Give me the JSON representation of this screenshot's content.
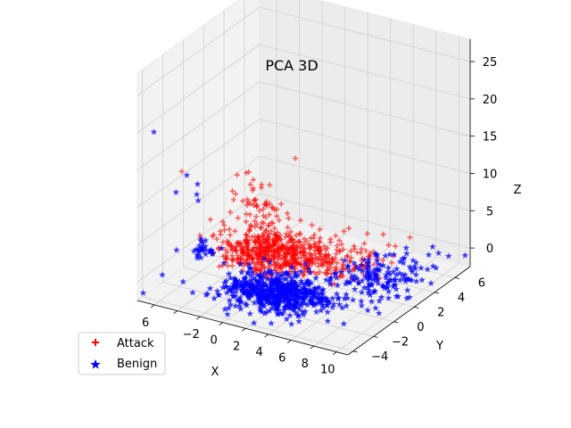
{
  "chart_data": {
    "type": "scatter",
    "projection": "3d",
    "title": "PCA 3D",
    "xlabel": "X",
    "ylabel": "Y",
    "zlabel": "Z",
    "xlim": [
      -7.5,
      11
    ],
    "ylim": [
      -4.5,
      7.5
    ],
    "zlim": [
      -2.5,
      28
    ],
    "x_ticks": [
      -6,
      -4,
      -2,
      0,
      2,
      4,
      6,
      8,
      10
    ],
    "y_ticks": [
      -4,
      -2,
      0,
      2,
      4,
      6
    ],
    "z_ticks": [
      0,
      5,
      10,
      15,
      20,
      25
    ],
    "x_tick_labels_visible": [
      "6",
      "",
      "−2",
      "0",
      "2",
      "4",
      "6",
      "8",
      "10"
    ],
    "y_tick_labels_visible": [
      "−4",
      "−2",
      "0",
      "2",
      "4",
      "6"
    ],
    "z_tick_labels_visible": [
      "0",
      "5",
      "10",
      "15",
      "20",
      "25"
    ],
    "legend_placement": "lower-left",
    "series": [
      {
        "name": "Attack",
        "color": "#ff0000",
        "marker": "plus",
        "clusters": [
          {
            "center": [
              0.5,
              -0.5,
              2
            ],
            "spread": [
              2.0,
              1.2,
              1.6
            ],
            "count": 460
          },
          {
            "center": [
              3.5,
              1.5,
              1.0
            ],
            "spread": [
              2.2,
              1.1,
              0.9
            ],
            "count": 220
          },
          {
            "center": [
              0.0,
              -1.0,
              7
            ],
            "spread": [
              0.8,
              0.6,
              3.0
            ],
            "count": 50
          }
        ],
        "points": [
          [
            -4.5,
            -3.5,
            15
          ],
          [
            -2.0,
            -1.0,
            10.5
          ],
          [
            1.0,
            1.5,
            14
          ],
          [
            6.5,
            4.0,
            3.5
          ],
          [
            7.5,
            5.5,
            2.0
          ]
        ]
      },
      {
        "name": "Benign",
        "color": "#0000ff",
        "marker": "star",
        "clusters": [
          {
            "center": [
              1.5,
              -1.0,
              -1.5
            ],
            "spread": [
              2.2,
              1.2,
              0.25
            ],
            "count": 600
          },
          {
            "center": [
              7.0,
              3.0,
              -1.0
            ],
            "spread": [
              1.8,
              1.5,
              0.25
            ],
            "count": 160
          },
          {
            "center": [
              -3.5,
              -2.5,
              3.5
            ],
            "spread": [
              0.8,
              0.5,
              0.8
            ],
            "count": 30
          }
        ],
        "points": [
          [
            -6.5,
            -4.0,
            20
          ],
          [
            -4.5,
            -3.0,
            14
          ],
          [
            -4.0,
            -2.5,
            12.5
          ],
          [
            -3.5,
            -3.0,
            11.0
          ],
          [
            -3.8,
            -2.8,
            11.5
          ],
          [
            -5.0,
            -3.5,
            12.0
          ],
          [
            10.0,
            6.5,
            -0.5
          ],
          [
            11.0,
            7.0,
            -0.5
          ]
        ]
      }
    ]
  }
}
